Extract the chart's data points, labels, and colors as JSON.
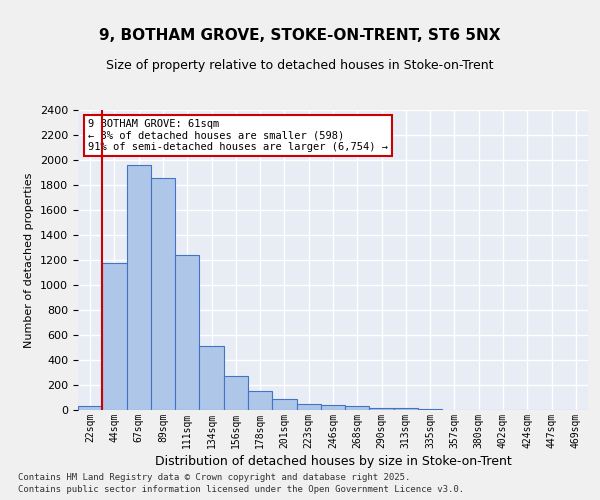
{
  "title_line1": "9, BOTHAM GROVE, STOKE-ON-TRENT, ST6 5NX",
  "title_line2": "Size of property relative to detached houses in Stoke-on-Trent",
  "xlabel": "Distribution of detached houses by size in Stoke-on-Trent",
  "ylabel": "Number of detached properties",
  "categories": [
    "22sqm",
    "44sqm",
    "67sqm",
    "89sqm",
    "111sqm",
    "134sqm",
    "156sqm",
    "178sqm",
    "201sqm",
    "223sqm",
    "246sqm",
    "268sqm",
    "290sqm",
    "313sqm",
    "335sqm",
    "357sqm",
    "380sqm",
    "402sqm",
    "424sqm",
    "447sqm",
    "469sqm"
  ],
  "values": [
    30,
    1175,
    1960,
    1855,
    1240,
    515,
    275,
    155,
    90,
    50,
    42,
    35,
    20,
    18,
    5,
    3,
    3,
    2,
    3,
    1,
    1
  ],
  "bar_color": "#aec6e8",
  "bar_edge_color": "#4472c4",
  "bg_color": "#e8edf5",
  "grid_color": "#ffffff",
  "vline_x": 1,
  "vline_color": "#cc0000",
  "annotation_text": "9 BOTHAM GROVE: 61sqm\n← 8% of detached houses are smaller (598)\n91% of semi-detached houses are larger (6,754) →",
  "annotation_box_color": "#cc0000",
  "annotation_bg": "#ffffff",
  "footer_line1": "Contains HM Land Registry data © Crown copyright and database right 2025.",
  "footer_line2": "Contains public sector information licensed under the Open Government Licence v3.0.",
  "ylim": [
    0,
    2400
  ],
  "yticks": [
    0,
    200,
    400,
    600,
    800,
    1000,
    1200,
    1400,
    1600,
    1800,
    2000,
    2200,
    2400
  ]
}
